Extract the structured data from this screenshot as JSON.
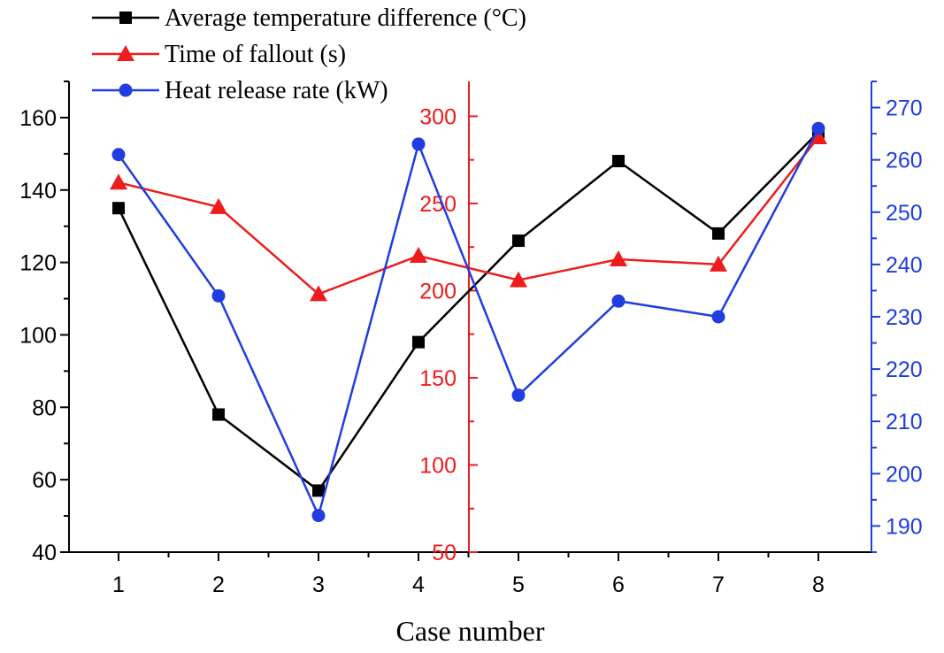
{
  "chart_data": {
    "type": "line",
    "xlabel": "Case number",
    "categories": [
      "1",
      "2",
      "3",
      "4",
      "5",
      "6",
      "7",
      "8"
    ],
    "series": [
      {
        "name": "Average temperature difference (°C)",
        "color": "#000000",
        "marker": "square",
        "axis": "left",
        "values": [
          135,
          78,
          57,
          98,
          126,
          148,
          128,
          156
        ]
      },
      {
        "name": "Time of fallout (s)",
        "color": "#ee1c1c",
        "marker": "triangle",
        "axis": "middle",
        "values": [
          262,
          248,
          198,
          220,
          206,
          218,
          215,
          288
        ]
      },
      {
        "name": "Heat release rate (kW)",
        "color": "#1f3de0",
        "marker": "circle",
        "axis": "right",
        "values": [
          261,
          234,
          192,
          263,
          215,
          233,
          230,
          266
        ]
      }
    ],
    "axes": {
      "left": {
        "range": [
          40,
          170
        ],
        "ticks": [
          "40",
          "60",
          "80",
          "100",
          "120",
          "140",
          "160"
        ],
        "color": "#000000"
      },
      "middle": {
        "range": [
          50,
          320
        ],
        "ticks": [
          "50",
          "100",
          "150",
          "200",
          "250",
          "300"
        ],
        "color": "#ee1c1c"
      },
      "right": {
        "range": [
          185,
          275
        ],
        "ticks": [
          "190",
          "200",
          "210",
          "220",
          "230",
          "240",
          "250",
          "260",
          "270"
        ],
        "color": "#1f3de0"
      }
    },
    "legend_position": "top-left"
  }
}
